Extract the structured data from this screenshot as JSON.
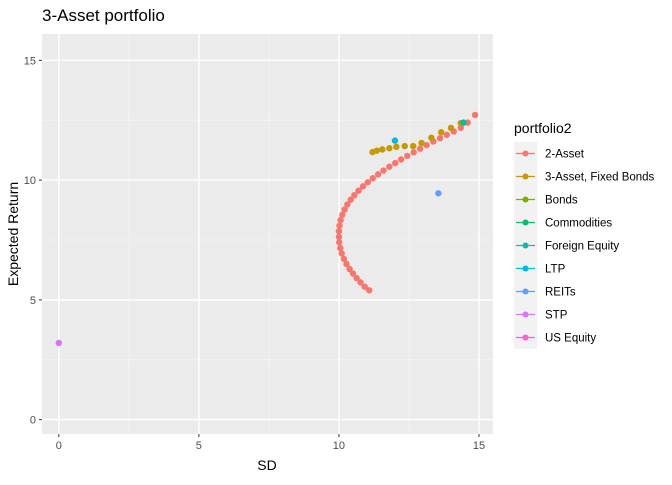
{
  "chart_data": {
    "type": "scatter",
    "title": "3-Asset portfolio",
    "xlabel": "SD",
    "ylabel": "Expected Return",
    "xlim": [
      -0.6,
      15.5
    ],
    "ylim": [
      -0.6,
      16.1
    ],
    "x_ticks": [
      0,
      5,
      10,
      15
    ],
    "y_ticks": [
      0,
      5,
      10,
      15
    ],
    "grid": true,
    "legend_title": "portfolio2",
    "legend_position": "right",
    "series": [
      {
        "name": "2-Asset",
        "color": "#F8766D",
        "points": [
          [
            11.08,
            5.4
          ],
          [
            10.92,
            5.55
          ],
          [
            10.77,
            5.73
          ],
          [
            10.63,
            5.91
          ],
          [
            10.5,
            6.1
          ],
          [
            10.38,
            6.29
          ],
          [
            10.27,
            6.5
          ],
          [
            10.18,
            6.71
          ],
          [
            10.1,
            6.94
          ],
          [
            10.05,
            7.16
          ],
          [
            10.01,
            7.4
          ],
          [
            10.0,
            7.63
          ],
          [
            10.0,
            7.87
          ],
          [
            10.02,
            8.1
          ],
          [
            10.06,
            8.33
          ],
          [
            10.12,
            8.55
          ],
          [
            10.2,
            8.77
          ],
          [
            10.3,
            8.98
          ],
          [
            10.42,
            9.18
          ],
          [
            10.55,
            9.37
          ],
          [
            10.7,
            9.56
          ],
          [
            10.86,
            9.74
          ],
          [
            11.03,
            9.91
          ],
          [
            11.21,
            10.08
          ],
          [
            11.4,
            10.24
          ],
          [
            11.59,
            10.4
          ],
          [
            11.8,
            10.56
          ],
          [
            12.01,
            10.71
          ],
          [
            12.22,
            10.86
          ],
          [
            12.44,
            11.01
          ],
          [
            12.67,
            11.16
          ],
          [
            12.9,
            11.31
          ],
          [
            13.13,
            11.46
          ],
          [
            13.37,
            11.61
          ],
          [
            13.61,
            11.75
          ],
          [
            13.85,
            11.89
          ],
          [
            14.1,
            12.03
          ],
          [
            14.35,
            12.18
          ],
          [
            14.6,
            12.4
          ],
          [
            14.86,
            12.72
          ]
        ]
      },
      {
        "name": "3-Asset, Fixed Bonds",
        "color": "#C49A00",
        "points": [
          [
            11.2,
            11.17
          ],
          [
            11.35,
            11.23
          ],
          [
            11.55,
            11.28
          ],
          [
            11.8,
            11.33
          ],
          [
            12.05,
            11.39
          ],
          [
            12.35,
            11.42
          ],
          [
            12.65,
            11.42
          ],
          [
            12.95,
            11.55
          ],
          [
            13.3,
            11.77
          ],
          [
            13.65,
            12.0
          ],
          [
            14.0,
            12.18
          ],
          [
            14.35,
            12.38
          ]
        ]
      },
      {
        "name": "Bonds",
        "color": "#7CAE00",
        "points": []
      },
      {
        "name": "Commodities",
        "color": "#00BE67",
        "points": []
      },
      {
        "name": "Foreign Equity",
        "color": "#00BFA3",
        "points": [
          [
            14.45,
            12.4
          ]
        ]
      },
      {
        "name": "LTP",
        "color": "#00B8E7",
        "points": [
          [
            12.0,
            11.65
          ]
        ]
      },
      {
        "name": "REITs",
        "color": "#619CFF",
        "points": [
          [
            13.55,
            9.45
          ]
        ]
      },
      {
        "name": "STP",
        "color": "#DB72FB",
        "points": [
          [
            0.0,
            3.2
          ]
        ]
      },
      {
        "name": "US Equity",
        "color": "#FF61C3",
        "points": []
      }
    ]
  }
}
